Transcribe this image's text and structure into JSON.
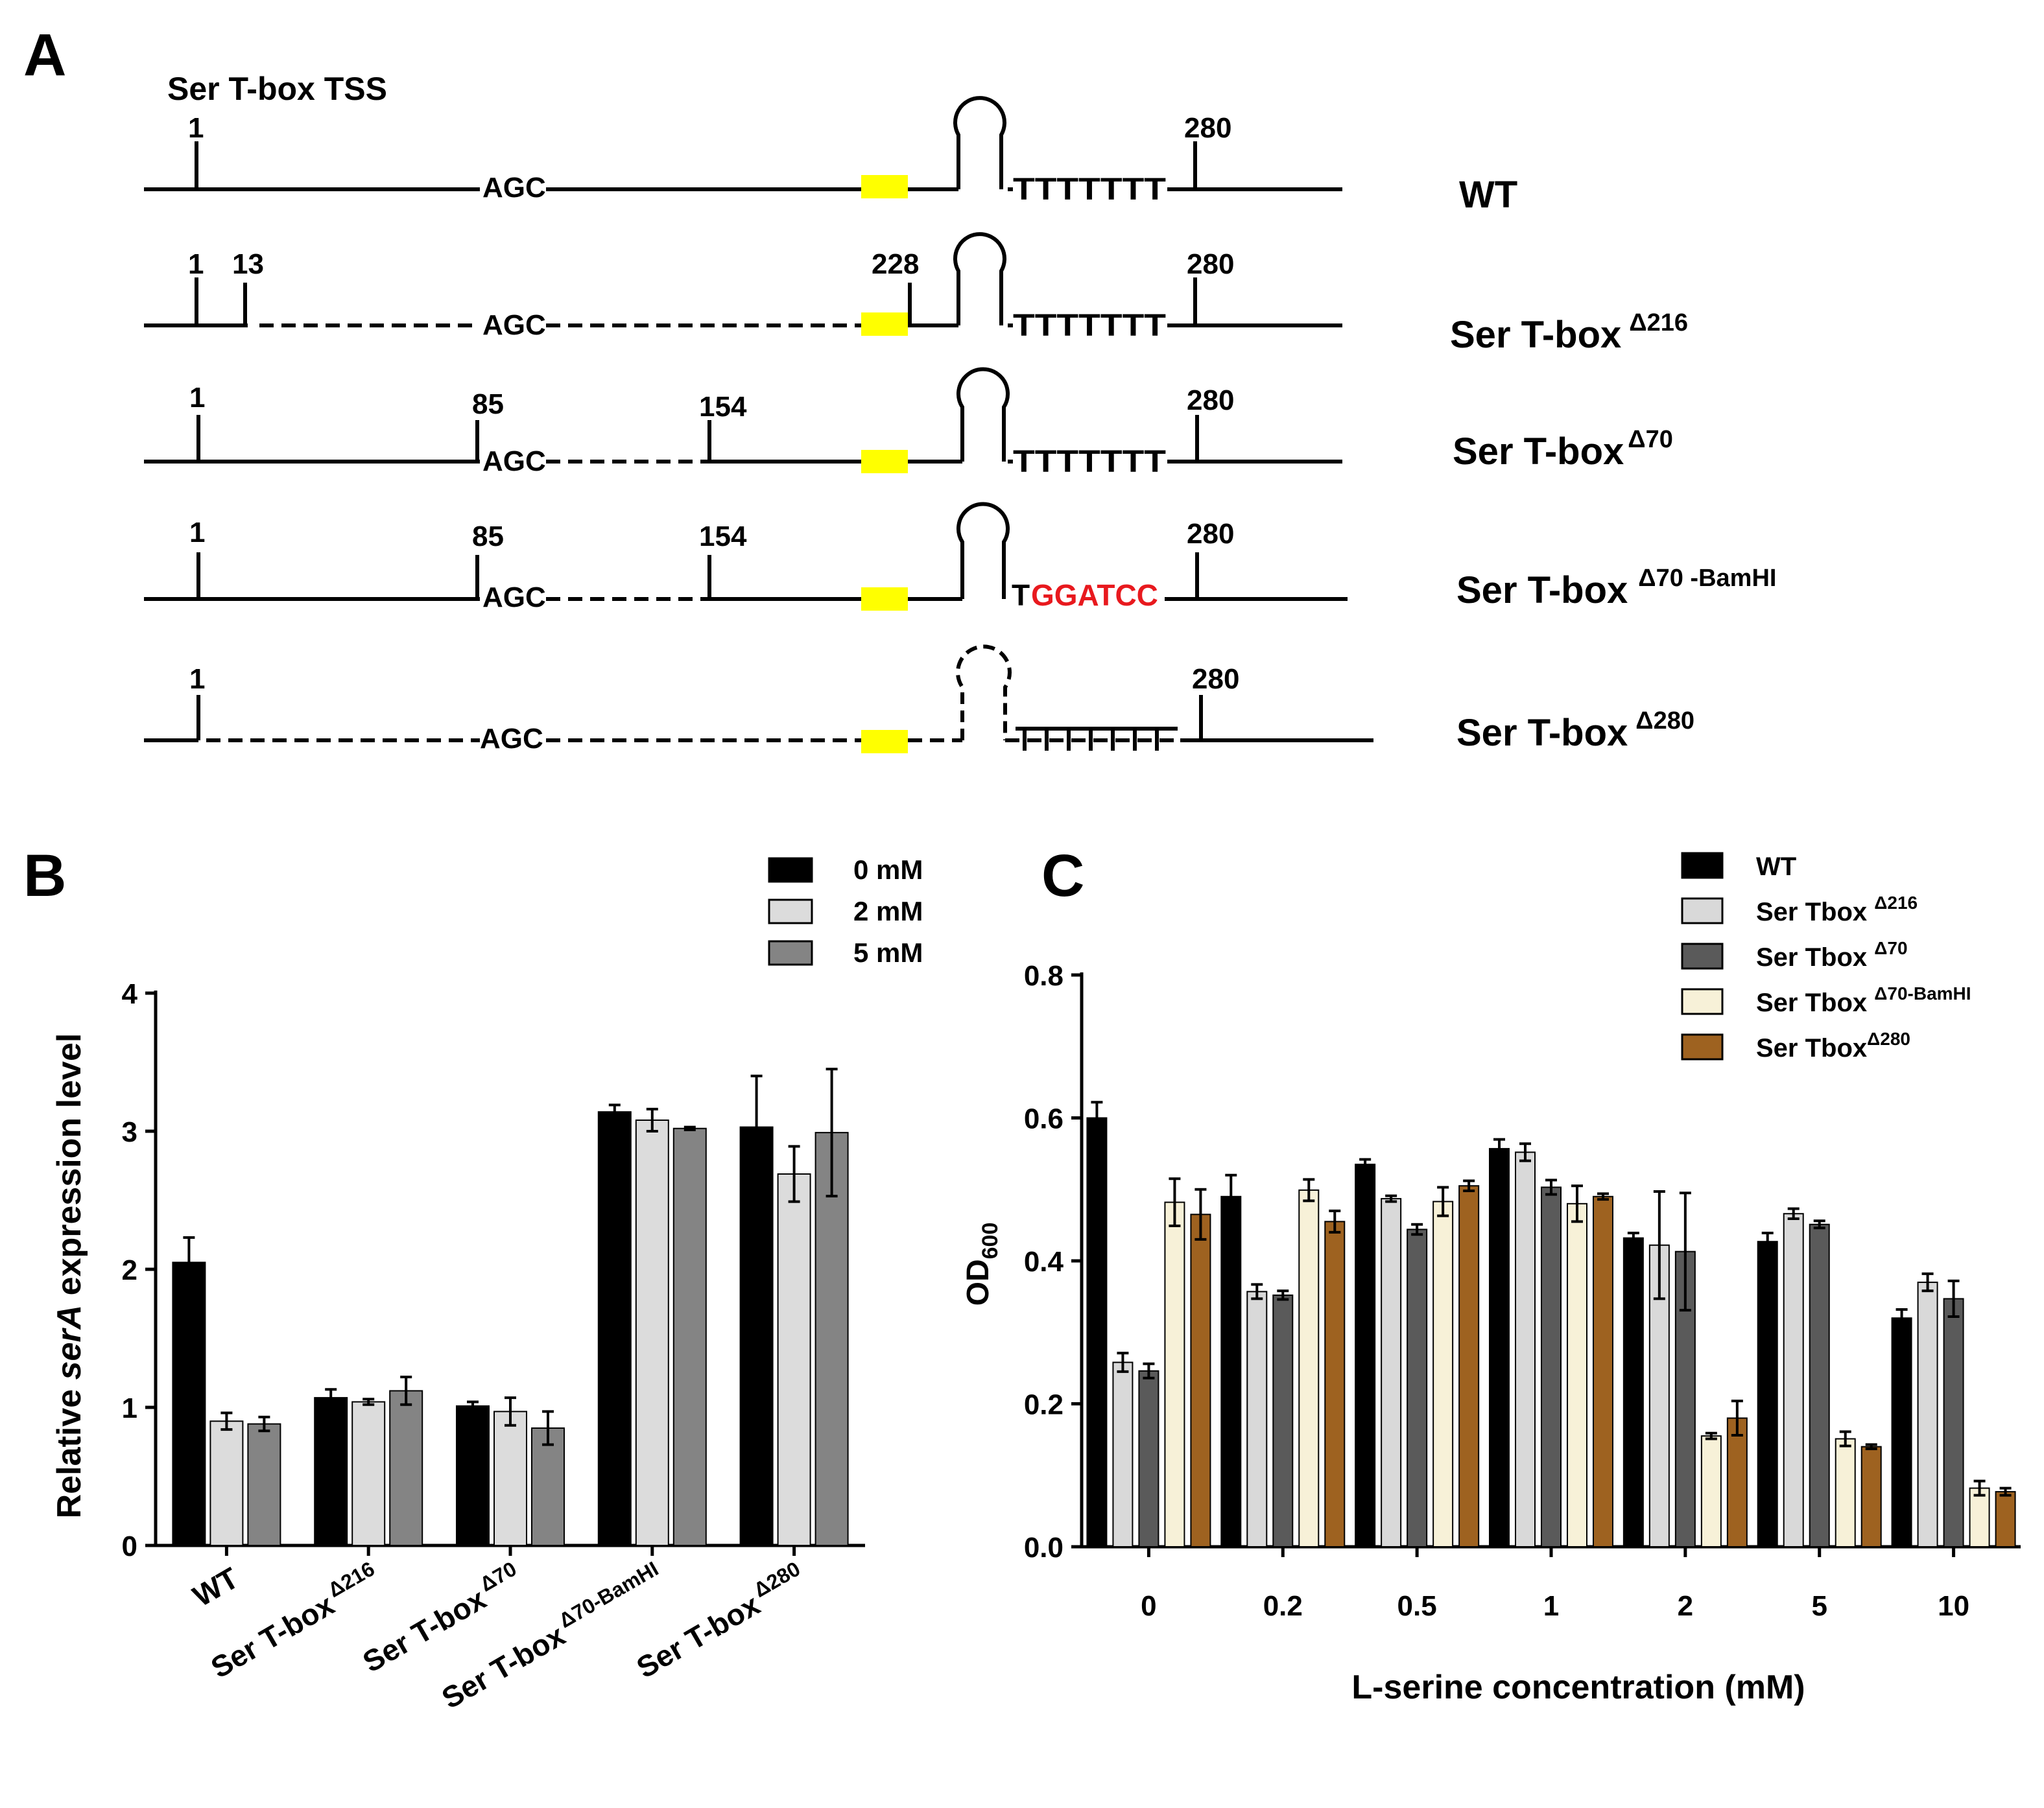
{
  "panel_a": {
    "panel_label": "A",
    "tss_label": "Ser T-box TSS",
    "construct_names": [
      {
        "base": "WT",
        "sup": ""
      },
      {
        "base": "Ser T-box",
        "sup": "Δ216"
      },
      {
        "base": "Ser T-box",
        "sup": "Δ70"
      },
      {
        "base": "Ser T-box",
        "sup": "Δ70 -BamHI"
      },
      {
        "base": "Ser T-box",
        "sup": "Δ280"
      }
    ],
    "codon": "AGC",
    "terminator_t": "TTTTTTT",
    "bamhi_t": "T",
    "bamhi_site": "GGATCC",
    "bamhi_color": "#e8191e",
    "box_color": "#ffff00",
    "rows": [
      {
        "ticks": [
          "1",
          "280"
        ]
      },
      {
        "ticks": [
          "1",
          "13",
          "228",
          "280"
        ]
      },
      {
        "ticks": [
          "1",
          "85",
          "154",
          "280"
        ]
      },
      {
        "ticks": [
          "1",
          "85",
          "154",
          "280"
        ]
      },
      {
        "ticks": [
          "1",
          "280"
        ]
      }
    ]
  },
  "panel_b": {
    "panel_label": "B",
    "ylabel_pre": "Relative ",
    "ylabel_italic": "serA",
    "ylabel_post": " expression level",
    "x_tick_labels": [
      {
        "base": "WT",
        "sup": ""
      },
      {
        "base": "Ser T-box",
        "sup": "Δ216"
      },
      {
        "base": "Ser T-box",
        "sup": "Δ70"
      },
      {
        "base": "Ser T-box",
        "sup": "Δ70-BamHI"
      },
      {
        "base": "Ser T-box",
        "sup": "Δ280"
      }
    ]
  },
  "panel_c": {
    "panel_label": "C",
    "ylabel_main": "OD",
    "ylabel_sub": "600",
    "xlabel": "L-serine concentration (mM)",
    "legend_labels": [
      {
        "base": "WT",
        "sup": ""
      },
      {
        "base": "Ser Tbox ",
        "sup": "Δ216"
      },
      {
        "base": "Ser Tbox ",
        "sup": "Δ70"
      },
      {
        "base": "Ser Tbox ",
        "sup": "Δ70-BamHI"
      },
      {
        "base": "Ser Tbox",
        "sup": "Δ280"
      }
    ]
  },
  "chart_data": [
    {
      "type": "bar",
      "panel": "B",
      "categories": [
        "WT",
        "Ser T-boxΔ216",
        "Ser T-boxΔ70",
        "Ser T-boxΔ70-BamHI",
        "Ser T-boxΔ280"
      ],
      "ylabel": "Relative serA expression level",
      "ylim": [
        0,
        4
      ],
      "yticks": [
        "0",
        "1",
        "2",
        "3",
        "4"
      ],
      "legend_position": "top-right",
      "series": [
        {
          "name": "0 mM",
          "color": "#000000",
          "values": [
            2.05,
            1.07,
            1.01,
            3.14,
            3.03
          ],
          "errors": [
            0.18,
            0.06,
            0.03,
            0.05,
            0.37
          ]
        },
        {
          "name": "2 mM",
          "color": "#dcdcdc",
          "values": [
            0.9,
            1.04,
            0.97,
            3.08,
            2.69
          ],
          "errors": [
            0.06,
            0.02,
            0.1,
            0.08,
            0.2
          ]
        },
        {
          "name": "5 mM",
          "color": "#848484",
          "values": [
            0.88,
            1.12,
            0.85,
            3.02,
            2.99
          ],
          "errors": [
            0.05,
            0.1,
            0.12,
            0.01,
            0.46
          ]
        }
      ]
    },
    {
      "type": "bar",
      "panel": "C",
      "categories": [
        "0",
        "0.2",
        "0.5",
        "1",
        "2",
        "5",
        "10"
      ],
      "xlabel": "L-serine concentration (mM)",
      "ylabel": "OD600",
      "ylim": [
        0,
        0.8
      ],
      "yticks": [
        "0.0",
        "0.2",
        "0.4",
        "0.6",
        "0.8"
      ],
      "legend_position": "top-right",
      "series": [
        {
          "name": "WT",
          "color": "#000000",
          "values": [
            0.6,
            0.49,
            0.535,
            0.557,
            0.432,
            0.427,
            0.32
          ],
          "errors": [
            0.022,
            0.03,
            0.007,
            0.013,
            0.007,
            0.012,
            0.012
          ]
        },
        {
          "name": "Ser TboxΔ216",
          "color": "#d9d9d9",
          "values": [
            0.258,
            0.357,
            0.487,
            0.552,
            0.422,
            0.466,
            0.37
          ],
          "errors": [
            0.013,
            0.01,
            0.004,
            0.012,
            0.075,
            0.007,
            0.012
          ]
        },
        {
          "name": "Ser TboxΔ70",
          "color": "#5a5a5a",
          "values": [
            0.246,
            0.352,
            0.444,
            0.503,
            0.413,
            0.451,
            0.347
          ],
          "errors": [
            0.01,
            0.006,
            0.007,
            0.01,
            0.082,
            0.005,
            0.025
          ]
        },
        {
          "name": "Ser TboxΔ70-BamHI",
          "color": "#f7f1d8",
          "values": [
            0.482,
            0.499,
            0.483,
            0.48,
            0.155,
            0.151,
            0.082
          ],
          "errors": [
            0.033,
            0.015,
            0.02,
            0.025,
            0.004,
            0.01,
            0.01
          ]
        },
        {
          "name": "Ser TboxΔ280",
          "color": "#9e6220",
          "values": [
            0.465,
            0.455,
            0.505,
            0.49,
            0.18,
            0.14,
            0.077
          ],
          "errors": [
            0.035,
            0.015,
            0.007,
            0.004,
            0.024,
            0.003,
            0.005
          ]
        }
      ]
    }
  ]
}
